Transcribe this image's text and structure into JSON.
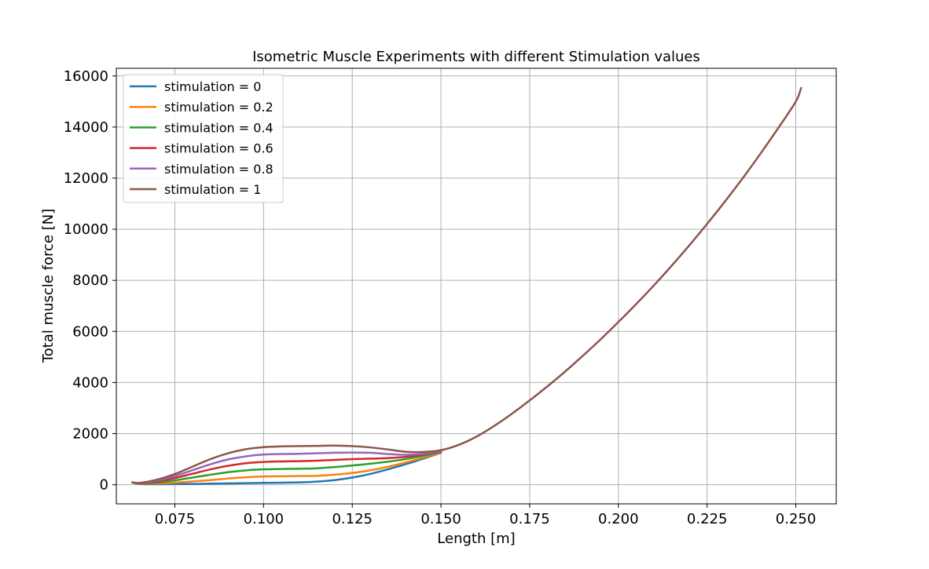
{
  "chart_data": {
    "type": "line",
    "title": "Isometric Muscle Experiments with different Stimulation values",
    "xlabel": "Length [m]",
    "ylabel": "Total muscle force [N]",
    "xlim": [
      0.0585,
      0.2614
    ],
    "ylim": [
      -750,
      16300
    ],
    "xticks": [
      0.075,
      0.1,
      0.125,
      0.15,
      0.175,
      0.2,
      0.225,
      0.25
    ],
    "xtick_labels": [
      "0.075",
      "0.100",
      "0.125",
      "0.150",
      "0.175",
      "0.200",
      "0.225",
      "0.250"
    ],
    "yticks": [
      0,
      2000,
      4000,
      6000,
      8000,
      10000,
      12000,
      14000,
      16000
    ],
    "ytick_labels": [
      "0",
      "2000",
      "4000",
      "6000",
      "8000",
      "10000",
      "12000",
      "14000",
      "16000"
    ],
    "grid": true,
    "legend_position": "top-left",
    "series": [
      {
        "name": "stimulation = 0",
        "color": "#1f77b4",
        "x": [
          0.063,
          0.065,
          0.07,
          0.08,
          0.09,
          0.1,
          0.11,
          0.115,
          0.12,
          0.125,
          0.13,
          0.135,
          0.14,
          0.145,
          0.15
        ],
        "y": [
          90,
          30,
          20,
          30,
          50,
          70,
          90,
          120,
          180,
          280,
          420,
          600,
          800,
          1020,
          1250
        ]
      },
      {
        "name": "stimulation = 0.2",
        "color": "#ff7f0e",
        "x": [
          0.063,
          0.065,
          0.07,
          0.075,
          0.08,
          0.085,
          0.09,
          0.095,
          0.1,
          0.105,
          0.11,
          0.115,
          0.12,
          0.125,
          0.13,
          0.135,
          0.14,
          0.145,
          0.15
        ],
        "y": [
          90,
          35,
          45,
          80,
          130,
          180,
          240,
          290,
          320,
          330,
          340,
          350,
          390,
          460,
          560,
          700,
          870,
          1060,
          1260
        ]
      },
      {
        "name": "stimulation = 0.4",
        "color": "#2ca02c",
        "x": [
          0.063,
          0.065,
          0.07,
          0.075,
          0.08,
          0.085,
          0.09,
          0.095,
          0.1,
          0.105,
          0.11,
          0.115,
          0.12,
          0.125,
          0.13,
          0.135,
          0.14,
          0.145,
          0.15
        ],
        "y": [
          90,
          45,
          80,
          170,
          280,
          390,
          490,
          560,
          600,
          615,
          625,
          640,
          690,
          750,
          820,
          900,
          1000,
          1130,
          1280
        ]
      },
      {
        "name": "stimulation = 0.6",
        "color": "#d62728",
        "x": [
          0.063,
          0.065,
          0.07,
          0.075,
          0.08,
          0.085,
          0.09,
          0.095,
          0.1,
          0.105,
          0.11,
          0.115,
          0.12,
          0.125,
          0.13,
          0.135,
          0.14,
          0.145,
          0.15
        ],
        "y": [
          90,
          55,
          120,
          260,
          430,
          600,
          740,
          840,
          890,
          910,
          920,
          940,
          970,
          1000,
          1020,
          1040,
          1090,
          1180,
          1300
        ]
      },
      {
        "name": "stimulation = 0.8",
        "color": "#9467bd",
        "x": [
          0.063,
          0.065,
          0.07,
          0.075,
          0.08,
          0.085,
          0.09,
          0.095,
          0.1,
          0.105,
          0.11,
          0.115,
          0.12,
          0.125,
          0.13,
          0.135,
          0.14,
          0.145,
          0.15
        ],
        "y": [
          90,
          60,
          160,
          340,
          570,
          800,
          990,
          1110,
          1180,
          1200,
          1210,
          1230,
          1250,
          1260,
          1250,
          1200,
          1170,
          1210,
          1320
        ]
      },
      {
        "name": "stimulation = 1",
        "color": "#8c564b",
        "x": [
          0.063,
          0.065,
          0.07,
          0.075,
          0.08,
          0.085,
          0.09,
          0.095,
          0.1,
          0.105,
          0.11,
          0.115,
          0.12,
          0.125,
          0.13,
          0.135,
          0.14,
          0.145,
          0.15,
          0.155,
          0.16,
          0.165,
          0.17,
          0.175,
          0.18,
          0.185,
          0.19,
          0.195,
          0.2,
          0.205,
          0.21,
          0.215,
          0.22,
          0.225,
          0.23,
          0.235,
          0.24,
          0.245,
          0.25,
          0.2515
        ],
        "y": [
          90,
          70,
          200,
          420,
          710,
          1000,
          1230,
          1390,
          1470,
          1500,
          1510,
          1520,
          1530,
          1510,
          1460,
          1380,
          1290,
          1280,
          1350,
          1560,
          1880,
          2300,
          2780,
          3300,
          3850,
          4430,
          5050,
          5690,
          6370,
          7070,
          7800,
          8570,
          9370,
          10210,
          11080,
          11990,
          12950,
          13950,
          15000,
          15530
        ]
      }
    ]
  }
}
